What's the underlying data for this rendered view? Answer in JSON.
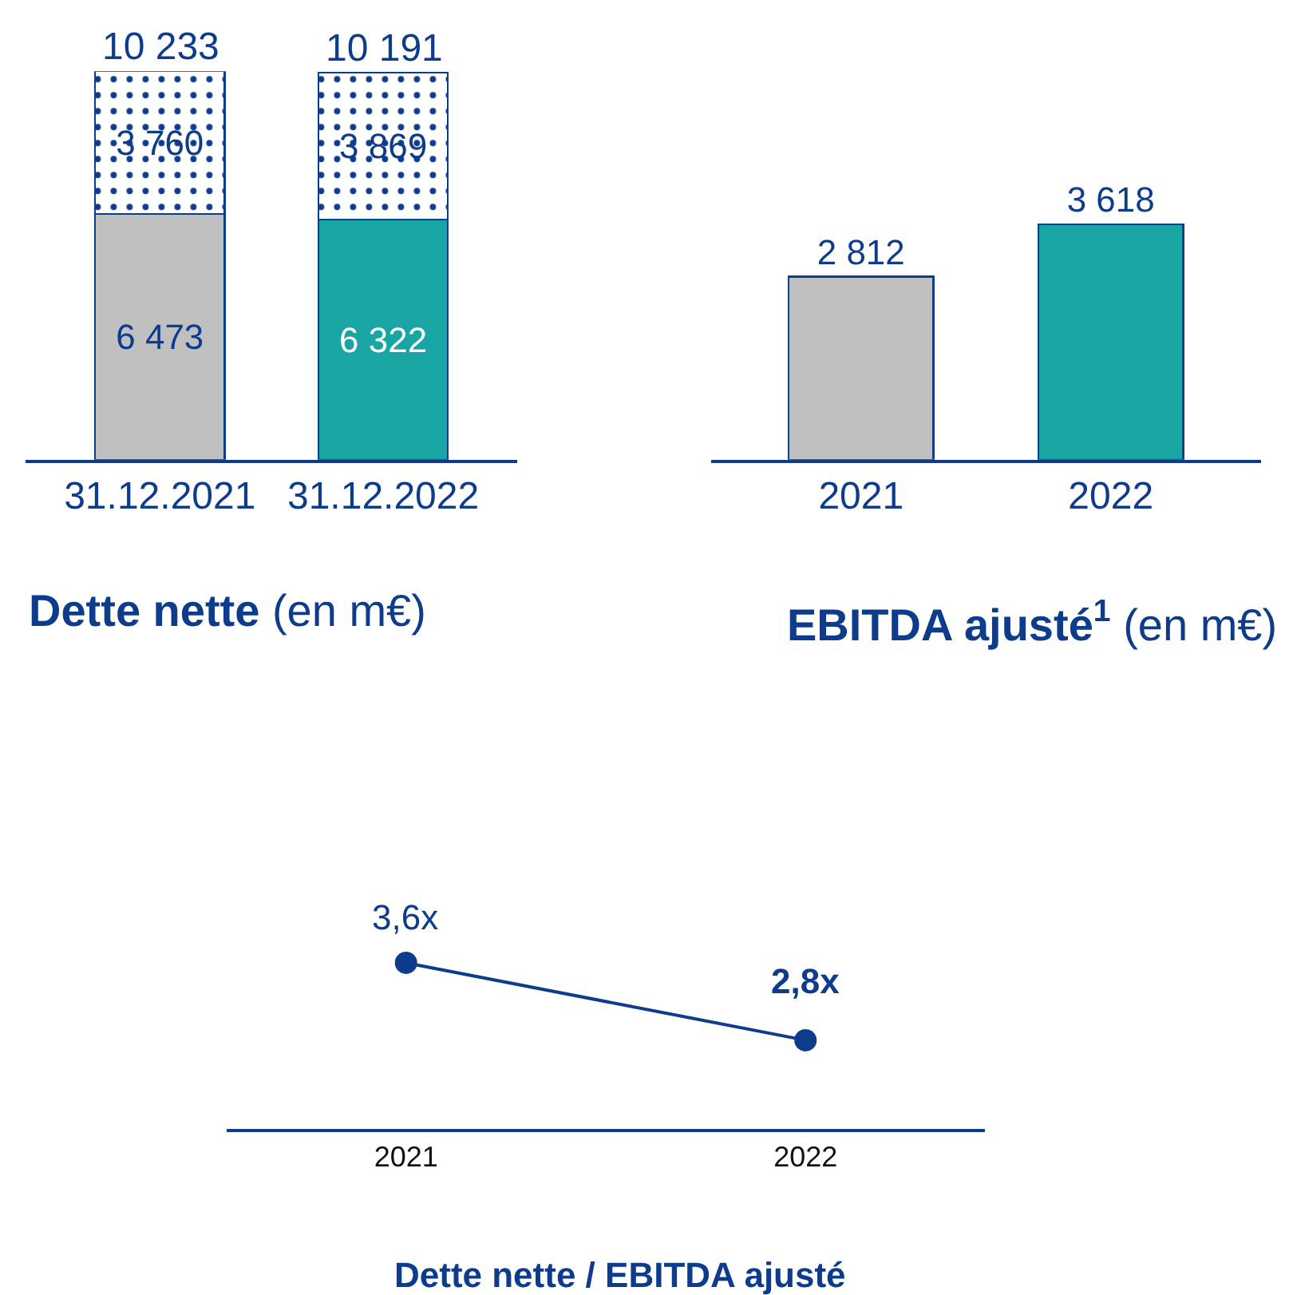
{
  "chart_data": [
    {
      "type": "bar",
      "title": "Dette nette",
      "subtitle": "(en m€)",
      "categories": [
        "31.12.2021",
        "31.12.2022"
      ],
      "stacked": true,
      "series": [
        {
          "colors": [
            "#c0c0c0",
            "#1aa5a5"
          ],
          "values": [
            6473,
            6322
          ],
          "value_labels": [
            "6 473",
            "6 322"
          ]
        },
        {
          "color": "#0d3c8c",
          "values": [
            3760,
            3869
          ],
          "value_labels": [
            "3 760",
            "3 869"
          ]
        }
      ],
      "totals": [
        "10 233",
        "10 191"
      ],
      "tick_labels": "x"
    },
    {
      "type": "bar",
      "title": "EBITDA ajusté$^{1}$",
      "subtitle": "(en m€)",
      "categories": [
        "2021",
        "2022"
      ],
      "colors": [
        "#c0c0c0",
        "#1aa5a5"
      ],
      "values": [
        2812,
        3618
      ],
      "value_labels": [
        "2 812",
        "3 618"
      ],
      "tick_labels": "x"
    },
    {
      "type": "line",
      "title": "Dette nette / EBITDA ajusté",
      "categories": [
        "2021",
        "2022"
      ],
      "values": [
        3.6,
        2.8
      ],
      "value_labels": [
        "3,6x",
        "2,8x"
      ],
      "color": "#0d3c8c",
      "marker": "circle",
      "line_style": "solid",
      "tick_labels": "x"
    }
  ]
}
